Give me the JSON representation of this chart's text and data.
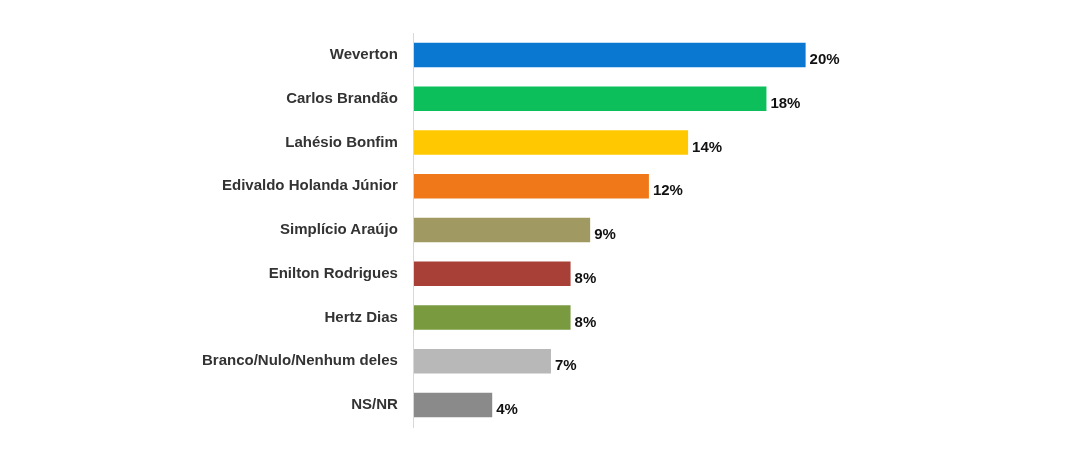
{
  "chart_data": {
    "type": "bar",
    "orientation": "horizontal",
    "categories": [
      "Weverton",
      "Carlos Brandão",
      "Lahésio Bonfim",
      "Edivaldo Holanda Júnior",
      "Simplício Araújo",
      "Enilton Rodrigues",
      "Hertz Dias",
      "Branco/Nulo/Nenhum deles",
      "NS/NR"
    ],
    "values": [
      20,
      18,
      14,
      12,
      9,
      8,
      8,
      7,
      4
    ],
    "colors": [
      "#0a77d0",
      "#0cbf5a",
      "#ffc800",
      "#f07818",
      "#a09a62",
      "#a84038",
      "#7a9a40",
      "#b8b8b8",
      "#8a8a8a"
    ],
    "value_labels": [
      "20%",
      "18%",
      "14%",
      "12%",
      "9%",
      "8%",
      "8%",
      "7%",
      "4%"
    ],
    "legend": false
  }
}
